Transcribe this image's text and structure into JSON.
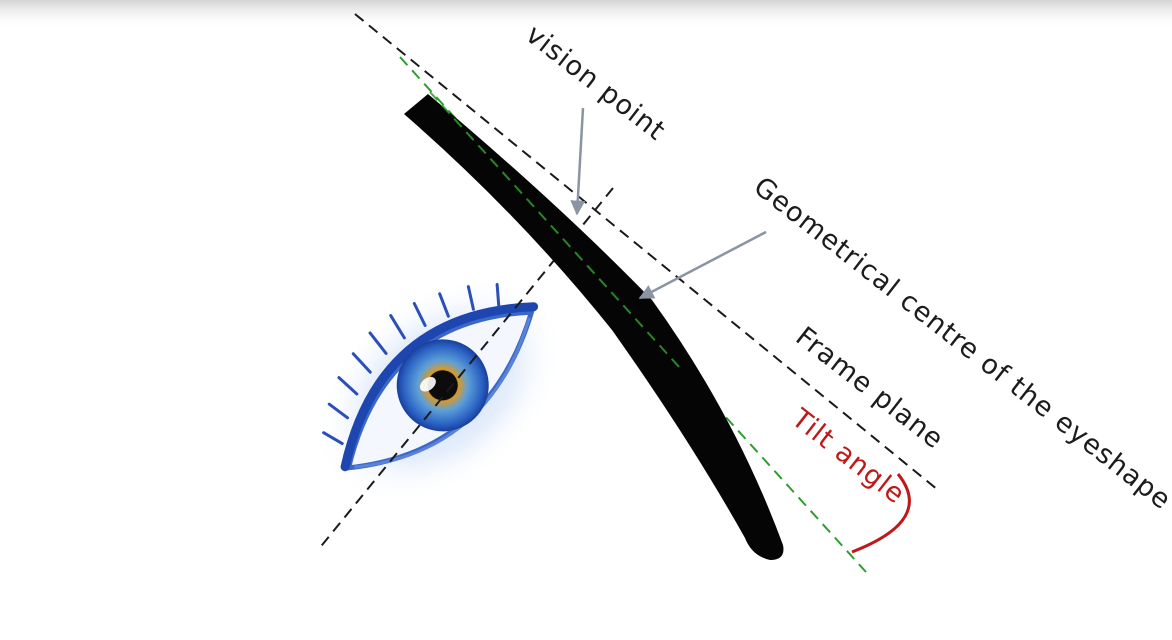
{
  "labels": {
    "vision_point": "vision point",
    "geometrical_centre": "Geometrical centre of the eyeshape",
    "frame_plane": "Frame plane",
    "tilt_angle": "Tilt angle"
  },
  "colors": {
    "frame_plane_line": "#1a1a1a",
    "lens_plane_line": "#2e9e2e",
    "tilt_angle": "#c01818",
    "arrow": "#8a94a3",
    "lens": "#050505",
    "eye_iris": "#2a6fd0"
  },
  "icons": {
    "eye": "eye-illustration",
    "lens": "spectacle-lens-cross-section"
  }
}
